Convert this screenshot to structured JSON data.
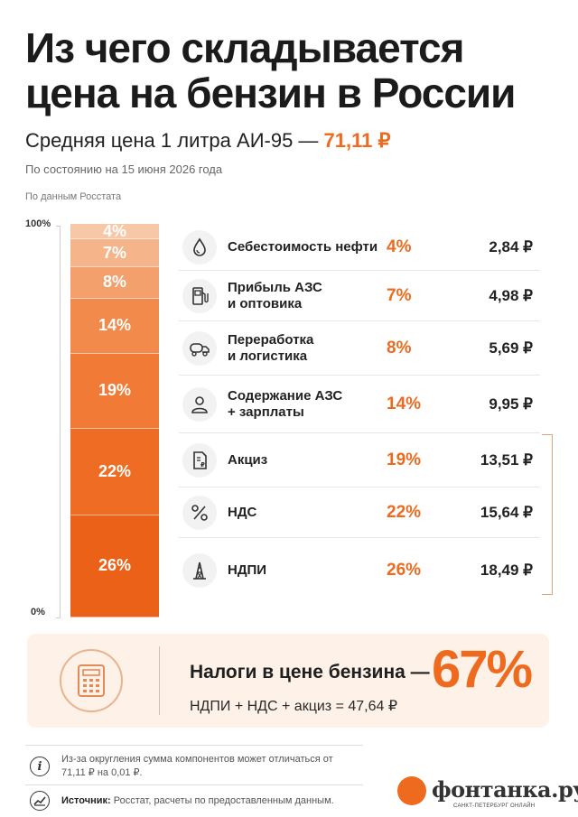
{
  "header": {
    "title": "Из чего складывается цена на бензин в России",
    "subtitle_prefix": "Средняя цена 1 литра АИ-95 —",
    "price": "71,11 ₽",
    "date_note": "По состоянию на 15 июня 2026 года",
    "source_note": "По данным Росстата"
  },
  "chart_data": {
    "type": "bar",
    "stacked": true,
    "ylim": [
      0,
      100
    ],
    "ytick_labels": [
      "100%",
      "0%"
    ],
    "categories": [
      "Себестоимость нефти",
      "Прибыль АЗС и оптовика",
      "Переработка и логистика",
      "Содержание АЗС + зарплаты",
      "Акциз",
      "НДС",
      "НДПИ"
    ],
    "series": [
      {
        "percent_values": [
          4,
          7,
          8,
          14,
          19,
          22,
          26
        ],
        "percent_labels": [
          "4%",
          "7%",
          "8%",
          "14%",
          "19%",
          "22%",
          "26%"
        ],
        "rub_values": [
          2.84,
          4.98,
          5.69,
          9.95,
          13.51,
          15.64,
          18.49
        ],
        "rub_labels": [
          "2,84 ₽",
          "4,98 ₽",
          "5,69 ₽",
          "9,95 ₽",
          "13,51 ₽",
          "15,64 ₽",
          "18,49 ₽"
        ]
      }
    ],
    "colors": [
      "#f8c7a6",
      "#f6b48a",
      "#f4a06d",
      "#f28a4c",
      "#f07a36",
      "#ee6c23",
      "#ec6118"
    ]
  },
  "rows": [
    {
      "label_lines": [
        "Себестоимость нефти"
      ],
      "icon": "oil-drop-icon"
    },
    {
      "label_lines": [
        "Прибыль АЗС",
        "и оптовика"
      ],
      "icon": "fuel-pump-icon"
    },
    {
      "label_lines": [
        "Переработка",
        "и логистика"
      ],
      "icon": "tanker-truck-icon"
    },
    {
      "label_lines": [
        "Содержание АЗС",
        "+ зарплаты"
      ],
      "icon": "worker-icon"
    },
    {
      "label_lines": [
        "Акциз"
      ],
      "icon": "excise-document-icon"
    },
    {
      "label_lines": [
        "НДС"
      ],
      "icon": "percent-icon"
    },
    {
      "label_lines": [
        "НДПИ"
      ],
      "icon": "oil-derrick-icon"
    }
  ],
  "tax_summary": {
    "title": "Налоги в цене бензина —",
    "percent": "67%",
    "formula": "НДПИ + НДС + акциз = 47,64 ₽",
    "icon": "calculator-icon"
  },
  "footer": {
    "note": "Из-за округления сумма компонентов может отличаться от 71,11 ₽ на 0,01 ₽.",
    "source_label": "Источник:",
    "source_text": "Росстат, расчеты по предоставленным данным.",
    "logo_text": "фонтанка.ру",
    "logo_sub": "САНКТ-ПЕТЕРБУРГ ОНЛАЙН"
  }
}
